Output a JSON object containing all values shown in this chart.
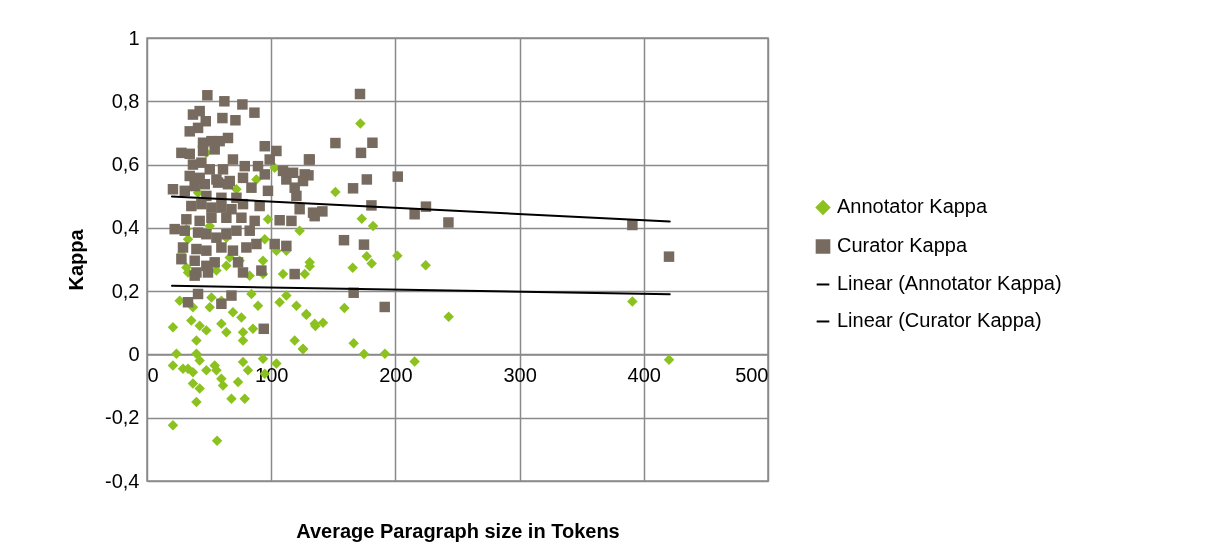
{
  "chart_data": {
    "type": "scatter",
    "xlabel": "Average Paragraph size in Tokens",
    "ylabel": "Kappa",
    "xlim": [
      0,
      500
    ],
    "xticks": [
      0,
      100,
      200,
      300,
      400,
      500
    ],
    "ylim": [
      -0.4,
      1
    ],
    "yticks": [
      {
        "value": -0.4,
        "label": "-0,4"
      },
      {
        "value": -0.2,
        "label": "-0,2"
      },
      {
        "value": 0,
        "label": "0"
      },
      {
        "value": 0.2,
        "label": "0,2"
      },
      {
        "value": 0.4,
        "label": "0,4"
      },
      {
        "value": 0.6,
        "label": "0,6"
      },
      {
        "value": 0.8,
        "label": "0,8"
      },
      {
        "value": 1,
        "label": "1"
      }
    ],
    "grid": true,
    "legend": "right",
    "series": [
      {
        "name": "Annotator Kappa",
        "type": "scatter",
        "marker": "diamond",
        "color": "#8cc21f",
        "x": [
          171.8,
          151.7,
          172.9,
          182,
          201.6,
          224.4,
          165.6,
          176.9,
          180.9,
          131,
          390.8,
          242.9,
          158.9,
          166.4,
          174.7,
          191.6,
          215.5,
          420.3,
          128.3,
          141.7,
          135.6,
          125.6,
          47.8,
          102.8,
          88.1,
          72,
          41.1,
          97.4,
          122.9,
          31.7,
          50.5,
          63.9,
          33,
          94.8,
          112.2,
          104.2,
          27.7,
          66.6,
          74.6,
          93.4,
          131,
          31.7,
          55.9,
          63.9,
          93.4,
          109.5,
          127,
          33,
          37,
          50.5,
          59.9,
          69.2,
          76,
          84.1,
          89.4,
          106.8,
          112.2,
          120.3,
          128.3,
          135,
          20.9,
          35.7,
          42.4,
          47.8,
          39.8,
          59.9,
          63.9,
          77.3,
          85.3,
          77.3,
          118.9,
          125.6,
          23.7,
          20.9,
          29,
          33,
          39.8,
          42.4,
          37,
          47.8,
          54.5,
          55.9,
          59.9,
          61.2,
          37,
          42.4,
          39.8,
          77.3,
          81.3,
          93.4,
          104.2,
          94.8,
          73.3,
          68,
          78.7,
          20.9,
          56.4,
          26.3,
          51.9,
          82.7
        ],
        "values": [
          0.73,
          0.513,
          0.429,
          0.406,
          0.312,
          0.282,
          0.274,
          0.31,
          0.287,
          0.279,
          0.167,
          0.119,
          0.147,
          0.035,
          0.001,
          0.002,
          -0.022,
          -0.017,
          0.125,
          0.1,
          0.09,
          0.016,
          0.637,
          0.59,
          0.553,
          0.522,
          0.511,
          0.427,
          0.391,
          0.396,
          0.406,
          0.369,
          0.364,
          0.364,
          0.328,
          0.328,
          0.317,
          0.306,
          0.296,
          0.296,
          0.291,
          0.275,
          0.265,
          0.28,
          0.254,
          0.254,
          0.254,
          0.259,
          0.149,
          0.149,
          0.17,
          0.133,
          0.117,
          0.191,
          0.154,
          0.165,
          0.186,
          0.154,
          0.128,
          0.097,
          0.086,
          0.107,
          0.091,
          0.076,
          0.044,
          0.097,
          0.07,
          0.07,
          0.081,
          0.044,
          0.044,
          0.018,
          0.002,
          -0.035,
          -0.045,
          -0.045,
          0.002,
          -0.019,
          -0.056,
          -0.05,
          -0.035,
          -0.05,
          -0.077,
          -0.098,
          -0.092,
          -0.108,
          -0.15,
          -0.024,
          -0.05,
          -0.014,
          -0.029,
          -0.061,
          -0.087,
          -0.14,
          -0.14,
          -0.224,
          -0.273,
          0.17,
          0.18,
          0.249
        ]
      },
      {
        "name": "Curator Kappa",
        "type": "scatter",
        "marker": "square",
        "color": "#776b5f",
        "x": [
          171.5,
          151.7,
          181.5,
          172.3,
          130.4,
          130,
          201.9,
          177,
          165.9,
          180.7,
          224.6,
          215.5,
          242.7,
          390.8,
          420.3,
          158.6,
          174.7,
          166.4,
          191.4,
          141.2,
          135,
          48.6,
          62.3,
          76.8,
          86.5,
          60.7,
          71.2,
          37,
          42.4,
          47.3,
          34.4,
          41.1,
          45.1,
          51.9,
          58.5,
          65.2,
          27.7,
          34.4,
          45.1,
          54.5,
          94.8,
          104.2,
          69.2,
          98.8,
          131,
          37,
          43.8,
          50.5,
          61.2,
          78.7,
          89.4,
          109.5,
          117.6,
          127,
          34.4,
          42.4,
          55.9,
          66.6,
          77.3,
          94.8,
          112.2,
          125.6,
          20.9,
          30.4,
          38.4,
          46.5,
          57.2,
          65.2,
          84.1,
          97.4,
          118.9,
          47.8,
          59.9,
          72,
          90.7,
          120.3,
          122.9,
          133.7,
          35.7,
          43.8,
          51.9,
          59.9,
          68,
          77.3,
          31.7,
          42.4,
          51.9,
          63.9,
          76,
          86.7,
          106.8,
          116.3,
          22.3,
          30.4,
          41.1,
          47.8,
          55.9,
          63.9,
          72,
          82.7,
          29,
          39.8,
          47.8,
          59.9,
          69.2,
          80,
          88.1,
          102.8,
          112.2,
          27.7,
          38.4,
          47.8,
          54.5,
          73.3,
          39.8,
          49.1,
          77.3,
          92.1,
          118.9,
          38.4,
          41.1,
          33,
          59.9,
          68,
          94
        ],
        "values": [
          0.823,
          0.668,
          0.669,
          0.637,
          0.616,
          0.566,
          0.562,
          0.553,
          0.525,
          0.471,
          0.467,
          0.443,
          0.417,
          0.409,
          0.309,
          0.361,
          0.347,
          0.195,
          0.15,
          0.452,
          0.437,
          0.819,
          0.8,
          0.79,
          0.764,
          0.747,
          0.74,
          0.758,
          0.769,
          0.737,
          0.705,
          0.716,
          0.669,
          0.674,
          0.674,
          0.684,
          0.637,
          0.634,
          0.643,
          0.648,
          0.658,
          0.643,
          0.616,
          0.616,
          0.616,
          0.6,
          0.606,
          0.585,
          0.585,
          0.595,
          0.595,
          0.58,
          0.574,
          0.569,
          0.564,
          0.558,
          0.553,
          0.548,
          0.558,
          0.569,
          0.553,
          0.548,
          0.522,
          0.517,
          0.532,
          0.538,
          0.543,
          0.538,
          0.527,
          0.517,
          0.527,
          0.501,
          0.495,
          0.495,
          0.469,
          0.501,
          0.459,
          0.448,
          0.469,
          0.475,
          0.464,
          0.464,
          0.459,
          0.475,
          0.427,
          0.422,
          0.432,
          0.432,
          0.432,
          0.422,
          0.424,
          0.422,
          0.396,
          0.391,
          0.385,
          0.38,
          0.369,
          0.38,
          0.391,
          0.391,
          0.338,
          0.333,
          0.328,
          0.338,
          0.328,
          0.338,
          0.349,
          0.349,
          0.343,
          0.301,
          0.296,
          0.28,
          0.291,
          0.291,
          0.259,
          0.259,
          0.259,
          0.265,
          0.254,
          0.249,
          0.191,
          0.165,
          0.16,
          0.186,
          0.081
        ]
      },
      {
        "name": "Linear (Annotator Kappa)",
        "type": "line",
        "color": "#000000",
        "x": [
          20.1,
          420.9
        ],
        "values": [
          0.217,
          0.19
        ]
      },
      {
        "name": "Linear (Curator Kappa)",
        "type": "line",
        "color": "#000000",
        "x": [
          20.1,
          420.9
        ],
        "values": [
          0.499,
          0.42
        ]
      }
    ]
  }
}
